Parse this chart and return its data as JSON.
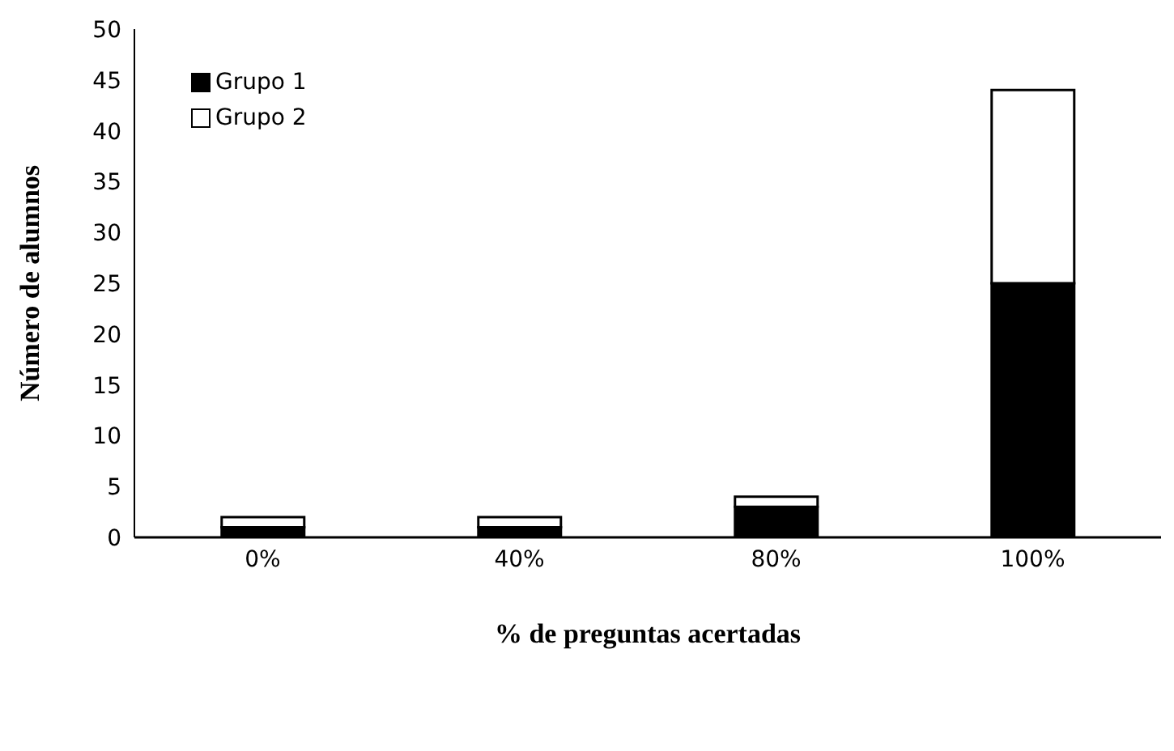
{
  "chart_data": {
    "type": "bar",
    "stacked": true,
    "xlabel": "%  de preguntas acertadas",
    "ylabel": "Número de alumnos",
    "categories": [
      "0%",
      "40%",
      "80%",
      "100%"
    ],
    "series": [
      {
        "name": "Grupo 1",
        "color": "#000000",
        "values": [
          1,
          1,
          3,
          25
        ]
      },
      {
        "name": "Grupo 2",
        "color": "#ffffff",
        "values": [
          1,
          1,
          1,
          19
        ]
      }
    ],
    "ylim": [
      0,
      50
    ],
    "yticks": [
      0,
      5,
      10,
      15,
      20,
      25,
      30,
      35,
      40,
      45,
      50
    ],
    "grid": false,
    "legend": "top left"
  }
}
